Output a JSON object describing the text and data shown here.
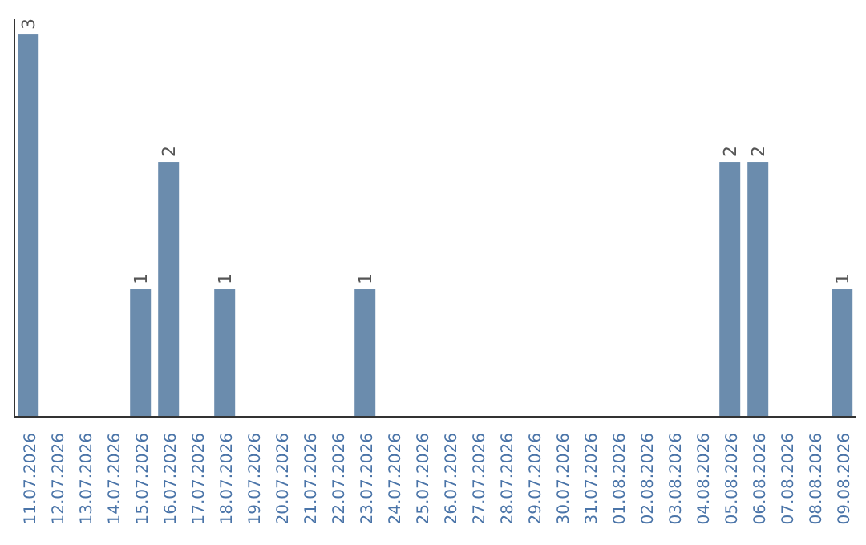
{
  "chart_data": {
    "type": "bar",
    "categories": [
      "11.07.2026",
      "12.07.2026",
      "13.07.2026",
      "14.07.2026",
      "15.07.2026",
      "16.07.2026",
      "17.07.2026",
      "18.07.2026",
      "19.07.2026",
      "20.07.2026",
      "21.07.2026",
      "22.07.2026",
      "23.07.2026",
      "24.07.2026",
      "25.07.2026",
      "26.07.2026",
      "27.07.2026",
      "28.07.2026",
      "29.07.2026",
      "30.07.2026",
      "31.07.2026",
      "01.08.2026",
      "02.08.2026",
      "03.08.2026",
      "04.08.2026",
      "05.08.2026",
      "06.08.2026",
      "07.08.2026",
      "08.08.2026",
      "09.08.2026"
    ],
    "values": [
      3,
      0,
      0,
      0,
      1,
      2,
      0,
      1,
      0,
      0,
      0,
      0,
      1,
      0,
      0,
      0,
      0,
      0,
      0,
      0,
      0,
      0,
      0,
      0,
      0,
      2,
      2,
      0,
      0,
      1
    ],
    "value_labels": [
      "3",
      null,
      null,
      null,
      "1",
      "2",
      null,
      "1",
      null,
      null,
      null,
      null,
      "1",
      null,
      null,
      null,
      null,
      null,
      null,
      null,
      null,
      null,
      null,
      null,
      null,
      "2",
      "2",
      null,
      null,
      "1"
    ],
    "color": "#6b8cad",
    "relative": false,
    "grid": false,
    "legend": false
  }
}
